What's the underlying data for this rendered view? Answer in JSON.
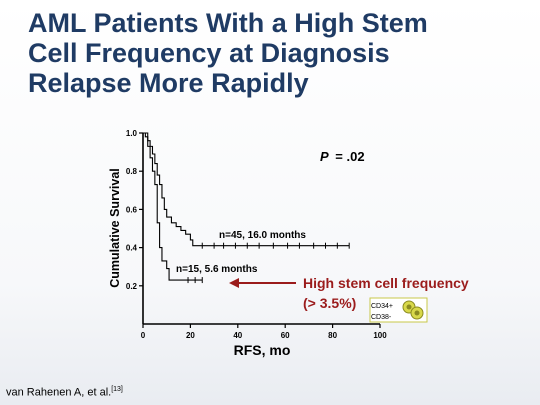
{
  "slide": {
    "title_lines": [
      "AML Patients With a High Stem",
      "Cell Frequency at Diagnosis",
      "Relapse More Rapidly"
    ],
    "citation": "van Rahenen A, et al.",
    "citation_ref": "[13]"
  },
  "colors": {
    "title": "#1f3b64",
    "highlight": "#9b1c1c",
    "cell_fill": "#d8d84a",
    "cell_border": "#c8c84a"
  },
  "chart_data": {
    "type": "line",
    "xlabel": "RFS, mo",
    "ylabel": "Cumulative Survival",
    "xlim": [
      0,
      100
    ],
    "ylim": [
      0,
      1.0
    ],
    "x_ticks": [
      0,
      20,
      40,
      60,
      80,
      100
    ],
    "y_ticks": [
      0.2,
      0.4,
      0.6,
      0.8,
      1.0
    ],
    "p_label": "P",
    "p_value": "= .02",
    "series": [
      {
        "name": "n=45, 16.0 months",
        "points": [
          [
            0,
            1.0
          ],
          [
            1,
            0.98
          ],
          [
            2,
            0.96
          ],
          [
            3,
            0.93
          ],
          [
            4,
            0.89
          ],
          [
            5,
            0.84
          ],
          [
            6,
            0.78
          ],
          [
            7,
            0.73
          ],
          [
            8,
            0.66
          ],
          [
            9,
            0.6
          ],
          [
            10,
            0.56
          ],
          [
            12,
            0.53
          ],
          [
            14,
            0.51
          ],
          [
            16,
            0.49
          ],
          [
            18,
            0.47
          ],
          [
            20,
            0.44
          ],
          [
            21,
            0.41
          ],
          [
            87,
            0.41
          ]
        ],
        "censored": [
          [
            25,
            0.41
          ],
          [
            30,
            0.41
          ],
          [
            34,
            0.41
          ],
          [
            39,
            0.41
          ],
          [
            44,
            0.41
          ],
          [
            49,
            0.41
          ],
          [
            55,
            0.41
          ],
          [
            61,
            0.41
          ],
          [
            66,
            0.41
          ],
          [
            72,
            0.41
          ],
          [
            77,
            0.41
          ],
          [
            82,
            0.41
          ],
          [
            87,
            0.41
          ]
        ]
      },
      {
        "name": "n=15, 5.6 months",
        "points": [
          [
            0,
            1.0
          ],
          [
            2,
            0.93
          ],
          [
            3,
            0.87
          ],
          [
            4,
            0.8
          ],
          [
            5,
            0.73
          ],
          [
            6,
            0.53
          ],
          [
            7,
            0.4
          ],
          [
            8,
            0.33
          ],
          [
            10,
            0.29
          ],
          [
            11,
            0.23
          ],
          [
            25,
            0.23
          ]
        ],
        "censored": [
          [
            19,
            0.23
          ],
          [
            22,
            0.23
          ],
          [
            25,
            0.23
          ]
        ]
      }
    ],
    "annotation": {
      "line1": "High stem cell frequency",
      "line2": "(> 3.5%)",
      "marker_line1": "CD34+",
      "marker_line2": "CD38-"
    }
  }
}
